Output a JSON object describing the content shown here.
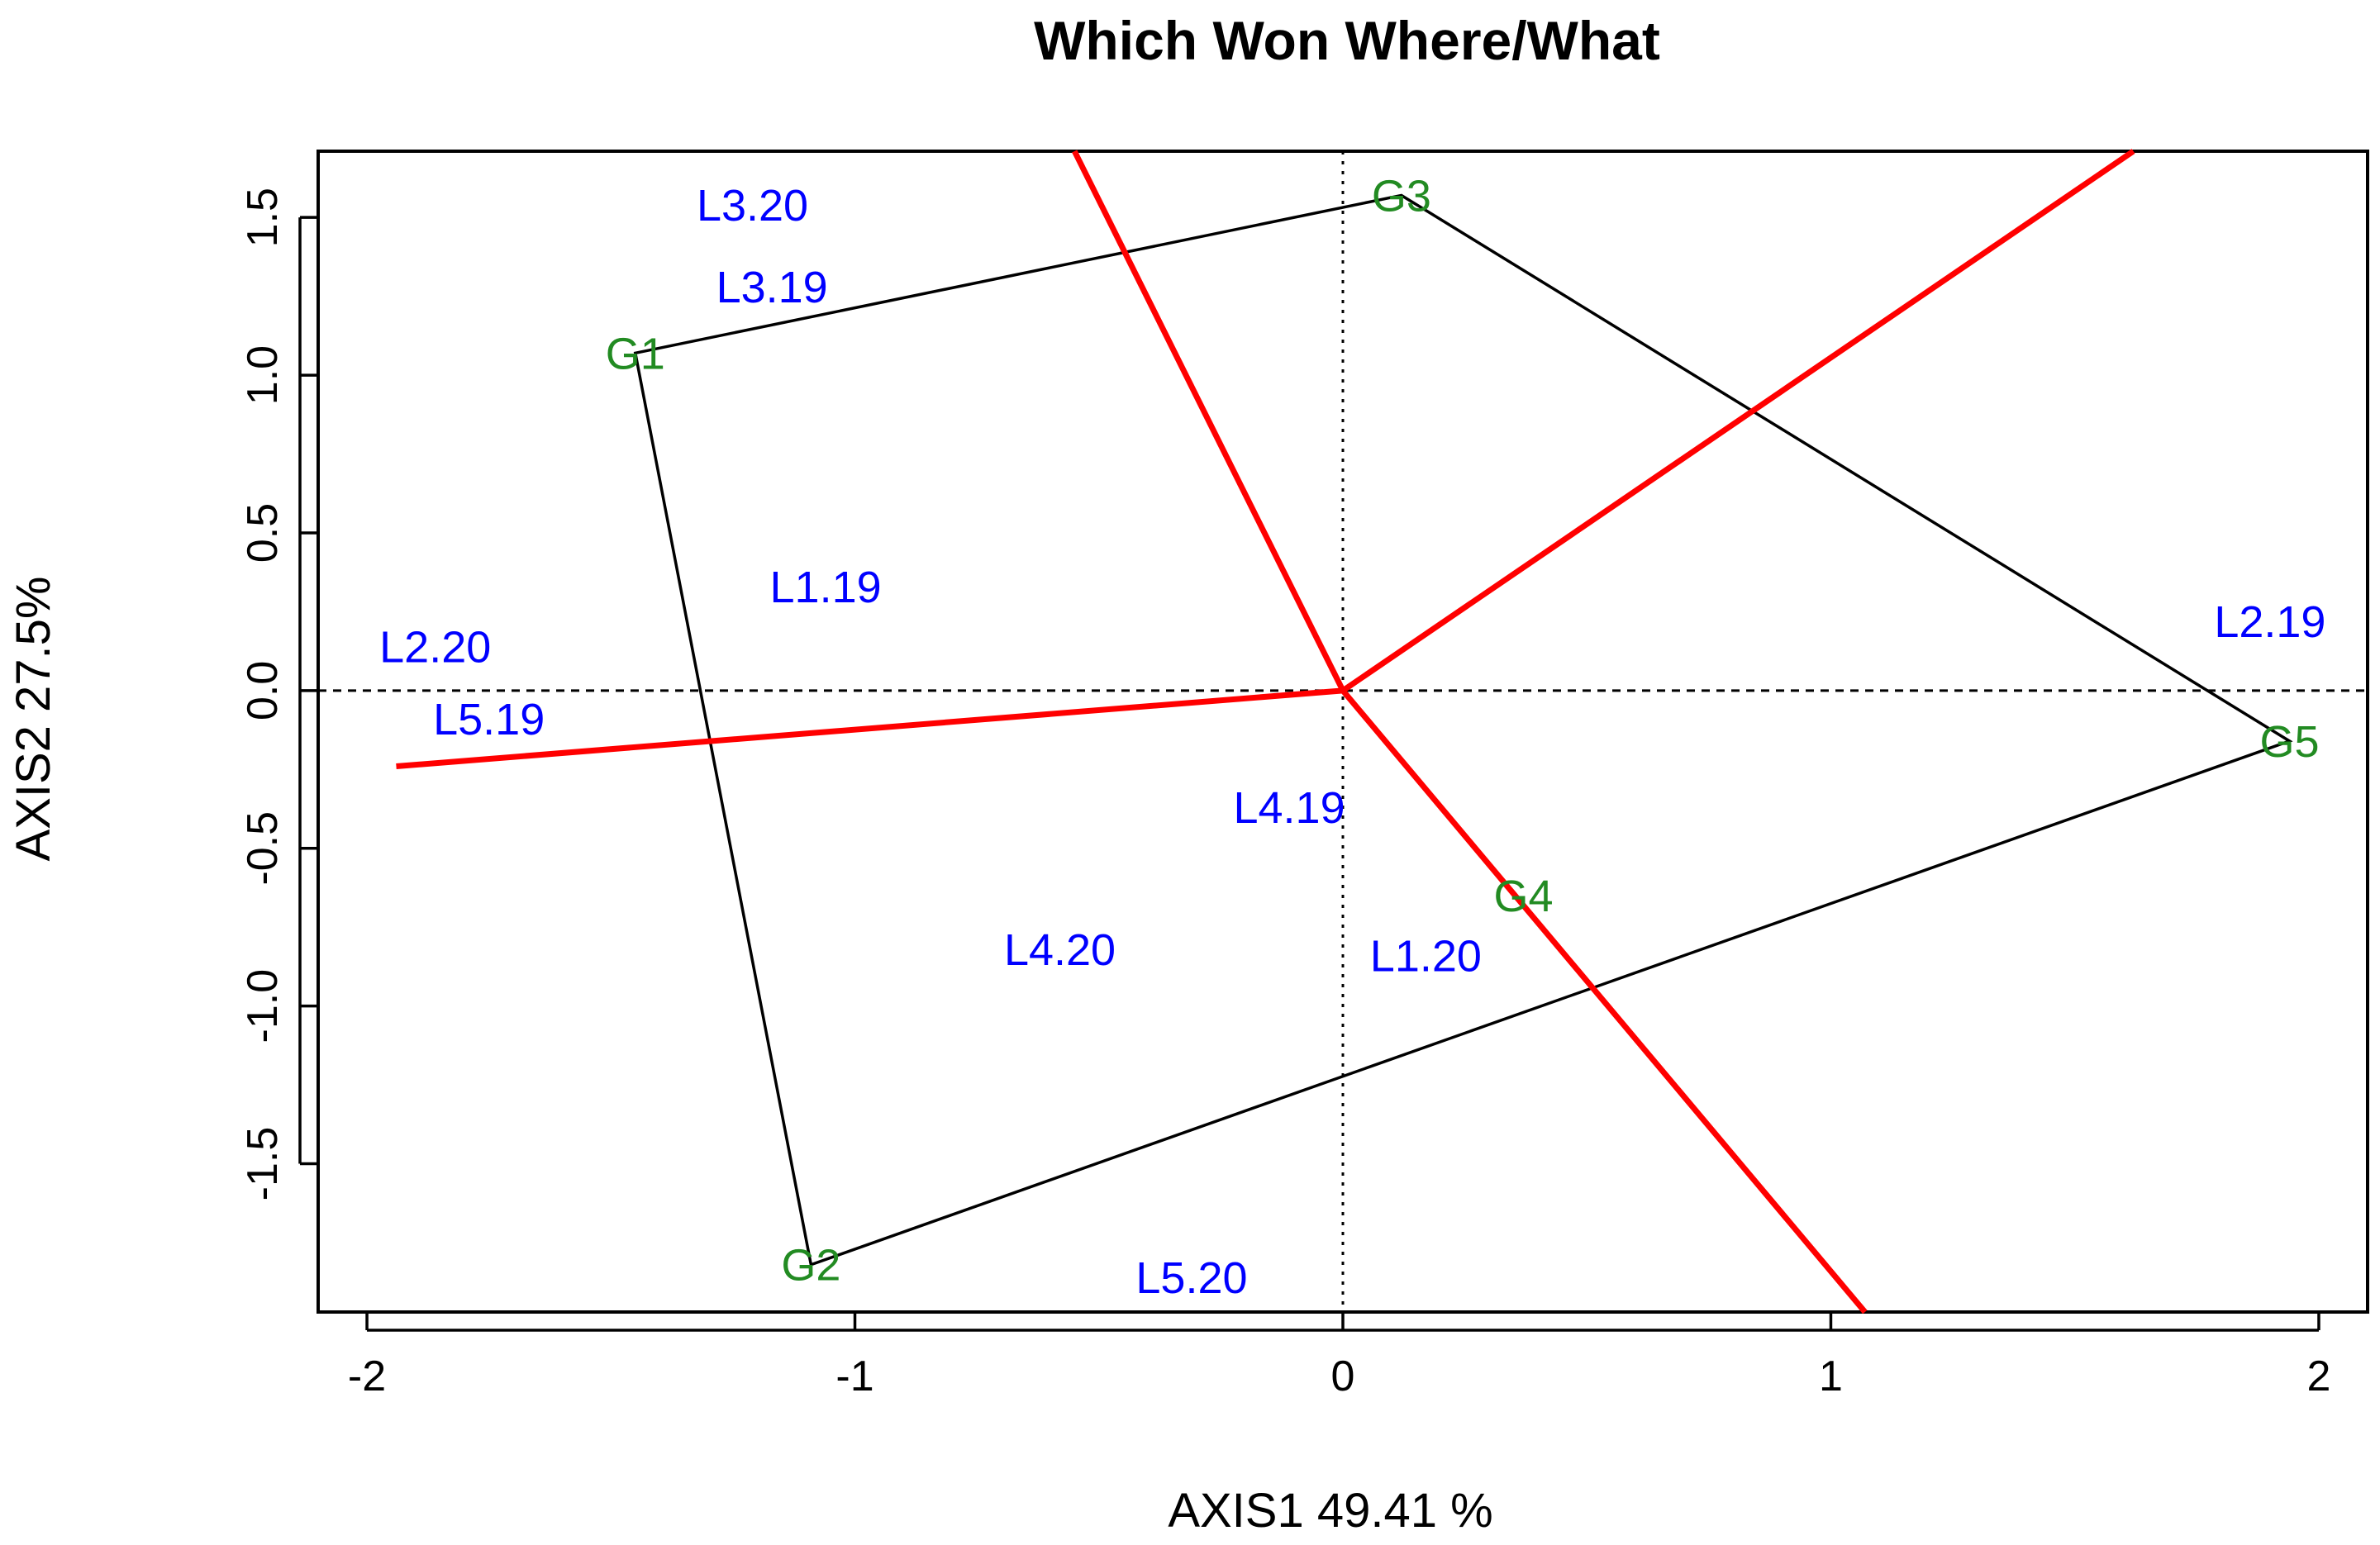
{
  "chart_data": {
    "type": "scatter",
    "title": "Which Won Where/What",
    "xlabel": "AXIS1 49.41 %",
    "ylabel": "AXIS2 27.5%",
    "xlim": [
      -2.1,
      2.1
    ],
    "ylim": [
      -1.97,
      1.71
    ],
    "x_ticks": [
      "-2",
      "-1",
      "0",
      "1",
      "2"
    ],
    "y_ticks": [
      "-1.5",
      "-1.0",
      "-0.5",
      "0.0",
      "0.5",
      "1.0",
      "1.5"
    ],
    "grid": false,
    "reference_lines": [
      "x=0 dotted",
      "y=0 dashed"
    ],
    "colors": {
      "environments": "#0000ff",
      "genotypes": "#228b22",
      "hull": "#000000",
      "sector_rays": "#ff0000"
    },
    "genotypes": [
      {
        "label": "G1",
        "x": -1.45,
        "y": 1.07
      },
      {
        "label": "G2",
        "x": -1.09,
        "y": -1.82
      },
      {
        "label": "G3",
        "x": 0.12,
        "y": 1.57
      },
      {
        "label": "G4",
        "x": 0.37,
        "y": -0.65
      },
      {
        "label": "G5",
        "x": 1.94,
        "y": -0.16
      }
    ],
    "environments": [
      {
        "label": "L3.20",
        "x": -1.21,
        "y": 1.54
      },
      {
        "label": "L3.19",
        "x": -1.17,
        "y": 1.28
      },
      {
        "label": "L1.19",
        "x": -1.06,
        "y": 0.33
      },
      {
        "label": "L2.20",
        "x": -1.86,
        "y": 0.14
      },
      {
        "label": "L5.19",
        "x": -1.75,
        "y": -0.09
      },
      {
        "label": "L2.19",
        "x": 1.9,
        "y": 0.22
      },
      {
        "label": "L4.19",
        "x": -0.11,
        "y": -0.37
      },
      {
        "label": "L4.20",
        "x": -0.58,
        "y": -0.82
      },
      {
        "label": "L1.20",
        "x": 0.17,
        "y": -0.84
      },
      {
        "label": "L5.20",
        "x": -0.31,
        "y": -1.86
      }
    ],
    "hull": [
      "G3",
      "G1",
      "G2",
      "G5"
    ],
    "sector_rays": [
      {
        "x": -1.94,
        "y": -0.24
      },
      {
        "x": -0.55,
        "y": 1.71
      },
      {
        "x": 1.62,
        "y": 1.71
      },
      {
        "x": 1.07,
        "y": -1.97
      }
    ]
  }
}
